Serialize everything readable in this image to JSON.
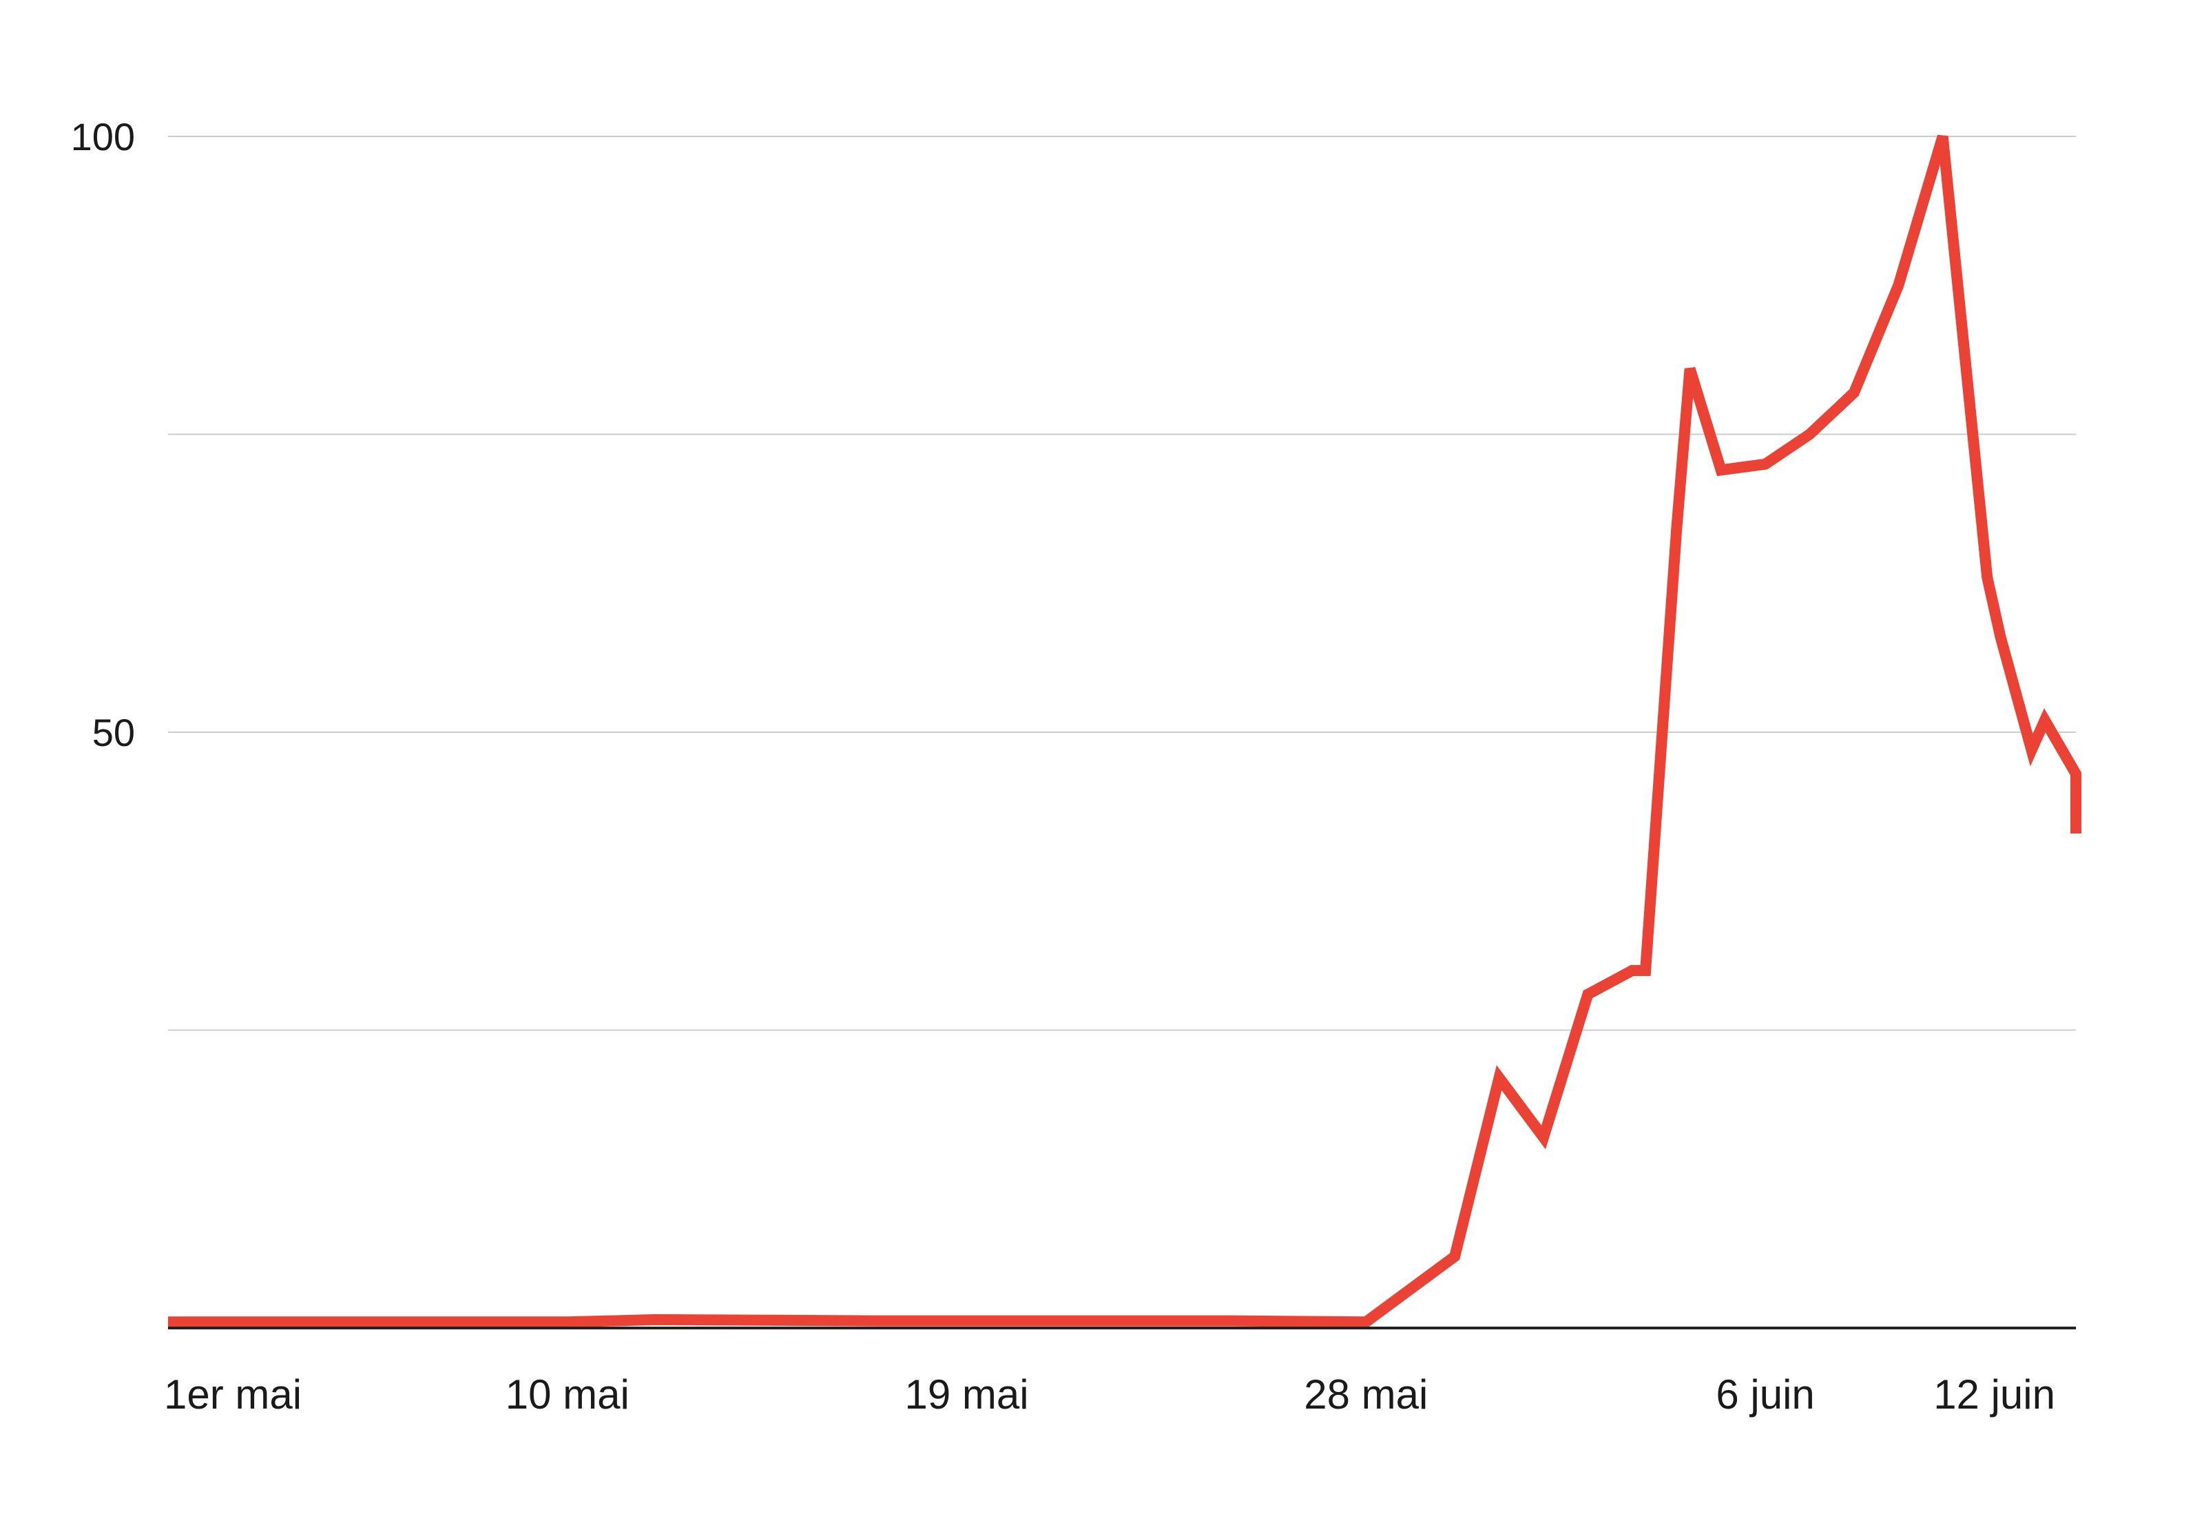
{
  "chart_data": {
    "type": "line",
    "title": "",
    "xlabel": "",
    "ylabel": "",
    "ylim": [
      0,
      100
    ],
    "y_ticks": [
      {
        "value": 50,
        "label": "50"
      },
      {
        "value": 100,
        "label": "100"
      }
    ],
    "gridlines_at": [
      25,
      50,
      75,
      100
    ],
    "grid": true,
    "legend": "none",
    "x_start": "1er mai",
    "x_end": "13 juin",
    "x_ticks": [
      {
        "x": "1er mai",
        "label": "1er mai"
      },
      {
        "x": "10 mai",
        "label": "10 mai"
      },
      {
        "x": "19 mai",
        "label": "19 mai"
      },
      {
        "x": "28 mai",
        "label": "28 mai"
      },
      {
        "x": "6 juin",
        "label": "6 juin"
      },
      {
        "x": "12 juin",
        "label": "12 juin"
      }
    ],
    "series": [
      {
        "name": "",
        "color": "#ea4335",
        "points": [
          {
            "x": "1er mai",
            "y": 0.5
          },
          {
            "x": "10 mai",
            "y": 0.5
          },
          {
            "x": "12 mai",
            "y": 0.7
          },
          {
            "x": "17 mai",
            "y": 0.6
          },
          {
            "x": "25 mai",
            "y": 0.6
          },
          {
            "x": "28 mai",
            "y": 0.5
          },
          {
            "x": "30 mai",
            "y": 6
          },
          {
            "x": "31 mai",
            "y": 21
          },
          {
            "x": "1 juin",
            "y": 16
          },
          {
            "x": "2 juin",
            "y": 28
          },
          {
            "x": "3 juin",
            "y": 30
          },
          {
            "x": "3 juin",
            "y": 30
          },
          {
            "x": "4 juin",
            "y": 67
          },
          {
            "x": "4 juin",
            "y": 80.5
          },
          {
            "x": "5 juin",
            "y": 72
          },
          {
            "x": "6 juin",
            "y": 72.5
          },
          {
            "x": "7 juin",
            "y": 75
          },
          {
            "x": "8 juin",
            "y": 78.5
          },
          {
            "x": "9 juin",
            "y": 87.5
          },
          {
            "x": "10 juin",
            "y": 100
          },
          {
            "x": "11 juin",
            "y": 63
          },
          {
            "x": "11 juin",
            "y": 58
          },
          {
            "x": "12 juin",
            "y": 48.5
          },
          {
            "x": "12 juin",
            "y": 51
          },
          {
            "x": "13 juin",
            "y": 46.5
          },
          {
            "x": "13 juin",
            "y": 41.5
          }
        ]
      }
    ]
  }
}
